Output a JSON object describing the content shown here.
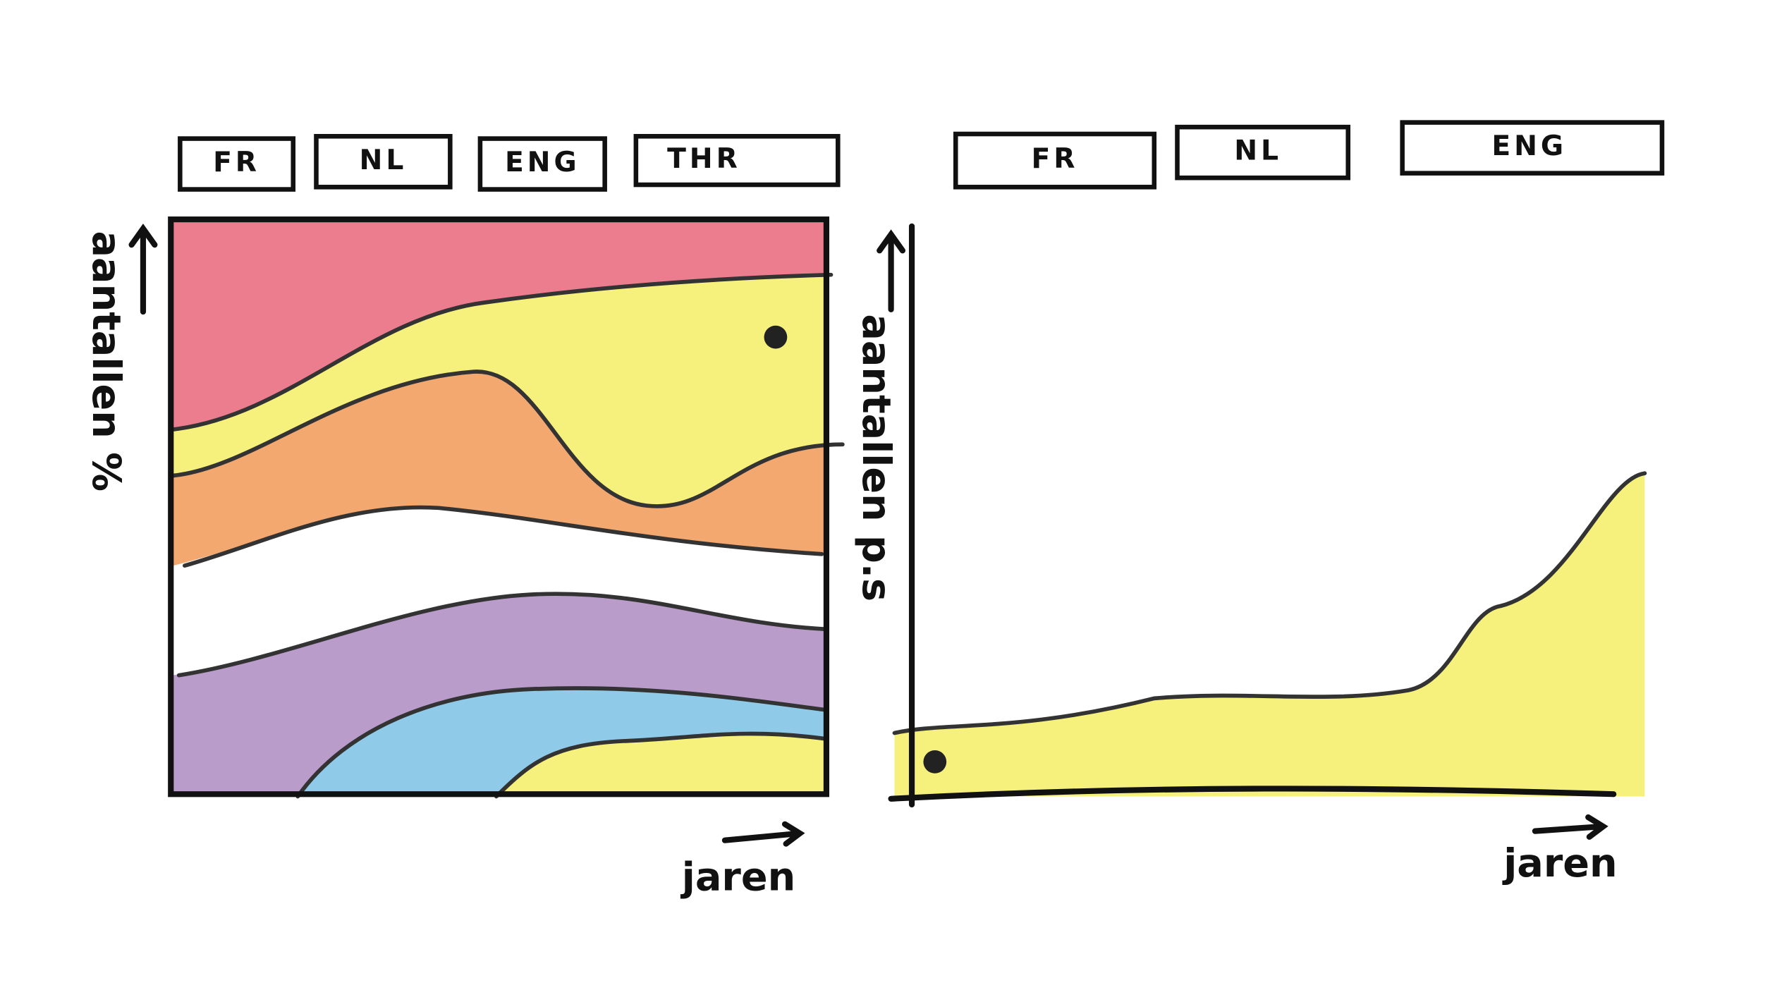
{
  "left_panel": {
    "tabs": [
      "FR",
      "NL",
      "ENG",
      "THR"
    ],
    "y_label": "aantallen %",
    "x_label": "jaren"
  },
  "right_panel": {
    "tabs": [
      "FR",
      "NL",
      "ENG"
    ],
    "y_label": "aantallen p.s",
    "x_label": "jaren"
  }
}
